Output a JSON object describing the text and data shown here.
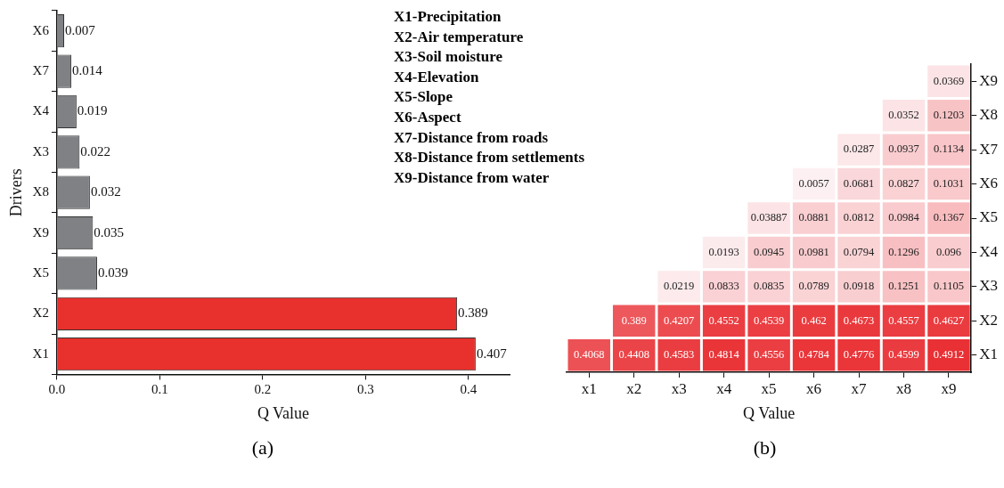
{
  "chart_data": [
    {
      "type": "bar",
      "orientation": "horizontal",
      "categories": [
        "X6",
        "X7",
        "X4",
        "X3",
        "X8",
        "X9",
        "X5",
        "X2",
        "X1"
      ],
      "values": [
        0.007,
        0.014,
        0.019,
        0.022,
        0.032,
        0.035,
        0.039,
        0.389,
        0.407
      ],
      "colors": [
        "#7f8184",
        "#7f8184",
        "#7f8184",
        "#7f8184",
        "#7f8184",
        "#7f8184",
        "#7f8184",
        "#e8302c",
        "#e8302c"
      ],
      "xlim": [
        0,
        0.44
      ],
      "xticks": [
        {
          "value": 0,
          "label": "0.0"
        },
        {
          "value": 0.1,
          "label": "0.1"
        },
        {
          "value": 0.2,
          "label": "0.2"
        },
        {
          "value": 0.3,
          "label": "0.3"
        },
        {
          "value": 0.4,
          "label": "0.4"
        }
      ],
      "xlabel": "Q Value",
      "ylabel": "Drivers",
      "data_labels": true,
      "grid": false,
      "legend": false,
      "annotations": [
        "(a)"
      ]
    },
    {
      "type": "heatmap",
      "categories": [
        "x1",
        "x2",
        "x3",
        "x4",
        "x5",
        "x6",
        "x7",
        "x8",
        "x9"
      ],
      "y_categories": [
        "X9",
        "X8",
        "X7",
        "X6",
        "X5",
        "X4",
        "X3",
        "X2",
        "X1"
      ],
      "cells": [
        [
          null,
          null,
          null,
          null,
          null,
          null,
          null,
          null,
          0.0369
        ],
        [
          null,
          null,
          null,
          null,
          null,
          null,
          null,
          0.0352,
          0.1203
        ],
        [
          null,
          null,
          null,
          null,
          null,
          null,
          0.0287,
          0.0937,
          0.1134
        ],
        [
          null,
          null,
          null,
          null,
          null,
          0.0057,
          0.0681,
          0.0827,
          0.1031
        ],
        [
          null,
          null,
          null,
          null,
          0.03887,
          0.0881,
          0.0812,
          0.0984,
          0.1367
        ],
        [
          null,
          null,
          null,
          0.0193,
          0.0945,
          0.0981,
          0.0794,
          0.1296,
          0.096
        ],
        [
          null,
          null,
          0.0219,
          0.0833,
          0.0835,
          0.0789,
          0.0918,
          0.1251,
          0.1105
        ],
        [
          null,
          0.389,
          0.4207,
          0.4552,
          0.4539,
          0.462,
          0.4673,
          0.4557,
          0.4627
        ],
        [
          0.4068,
          0.4408,
          0.4583,
          0.4814,
          0.4556,
          0.4784,
          0.4776,
          0.4599,
          0.4912
        ]
      ],
      "data_labels": true,
      "xlabel": "Q Value",
      "annotations": [
        "X1-Precipitation",
        "X2-Air temperature",
        "X3-Soil moisture",
        "X4-Elevation",
        "X5-Slope",
        "X6-Aspect",
        "X7-Distance from roads",
        "X8-Distance from settlements",
        "X9-Distance from water",
        "(b)"
      ]
    }
  ]
}
